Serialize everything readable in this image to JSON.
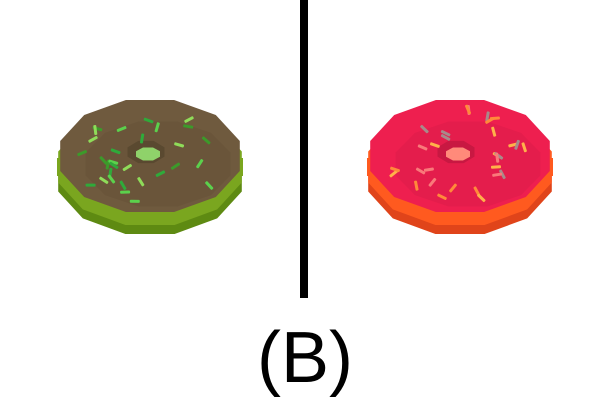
{
  "caption": "(B)",
  "donuts": [
    {
      "name": "left-donut",
      "base_color": "#7aa61f",
      "base_dark": "#5e8a12",
      "icing_color": "#6f5a3e",
      "icing_shadow": "#5a4930",
      "hole_color": "#8fd26a",
      "sprinkle_colors": [
        "#2faa3a",
        "#5bd14c",
        "#3c9a2a",
        "#8fdc59"
      ]
    },
    {
      "name": "right-donut",
      "base_color": "#ff5a1f",
      "base_dark": "#e0441a",
      "icing_color": "#ee1f4f",
      "icing_shadow": "#c81842",
      "hole_color": "#ff8a7a",
      "sprinkle_colors": [
        "#ff8a3a",
        "#ffb14a",
        "#f97a7a",
        "#a88a8a"
      ]
    }
  ]
}
